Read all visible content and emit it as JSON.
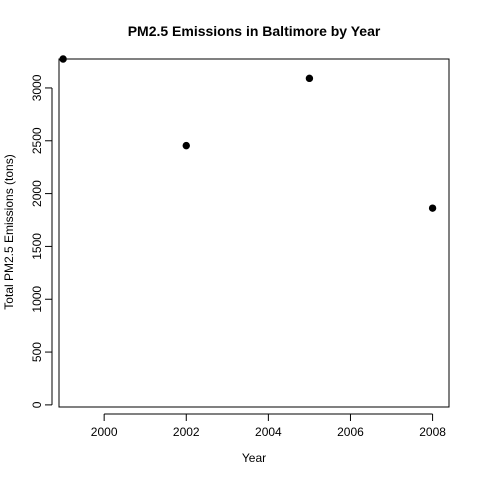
{
  "chart_data": {
    "type": "scatter",
    "title": "PM2.5 Emissions in Baltimore by Year",
    "xlabel": "Year",
    "ylabel": "Total PM2.5 Emissions (tons)",
    "x": [
      1999,
      2002,
      2005,
      2008
    ],
    "y": [
      3274,
      2454,
      3091,
      1862
    ],
    "xlim": [
      1998.9,
      2008.4
    ],
    "ylim": [
      -20,
      3274
    ],
    "xticks": [
      2000,
      2002,
      2004,
      2006,
      2008
    ],
    "yticks": [
      0,
      500,
      1000,
      1500,
      2000,
      2500,
      3000
    ],
    "grid": false,
    "point_color": "#000000"
  }
}
